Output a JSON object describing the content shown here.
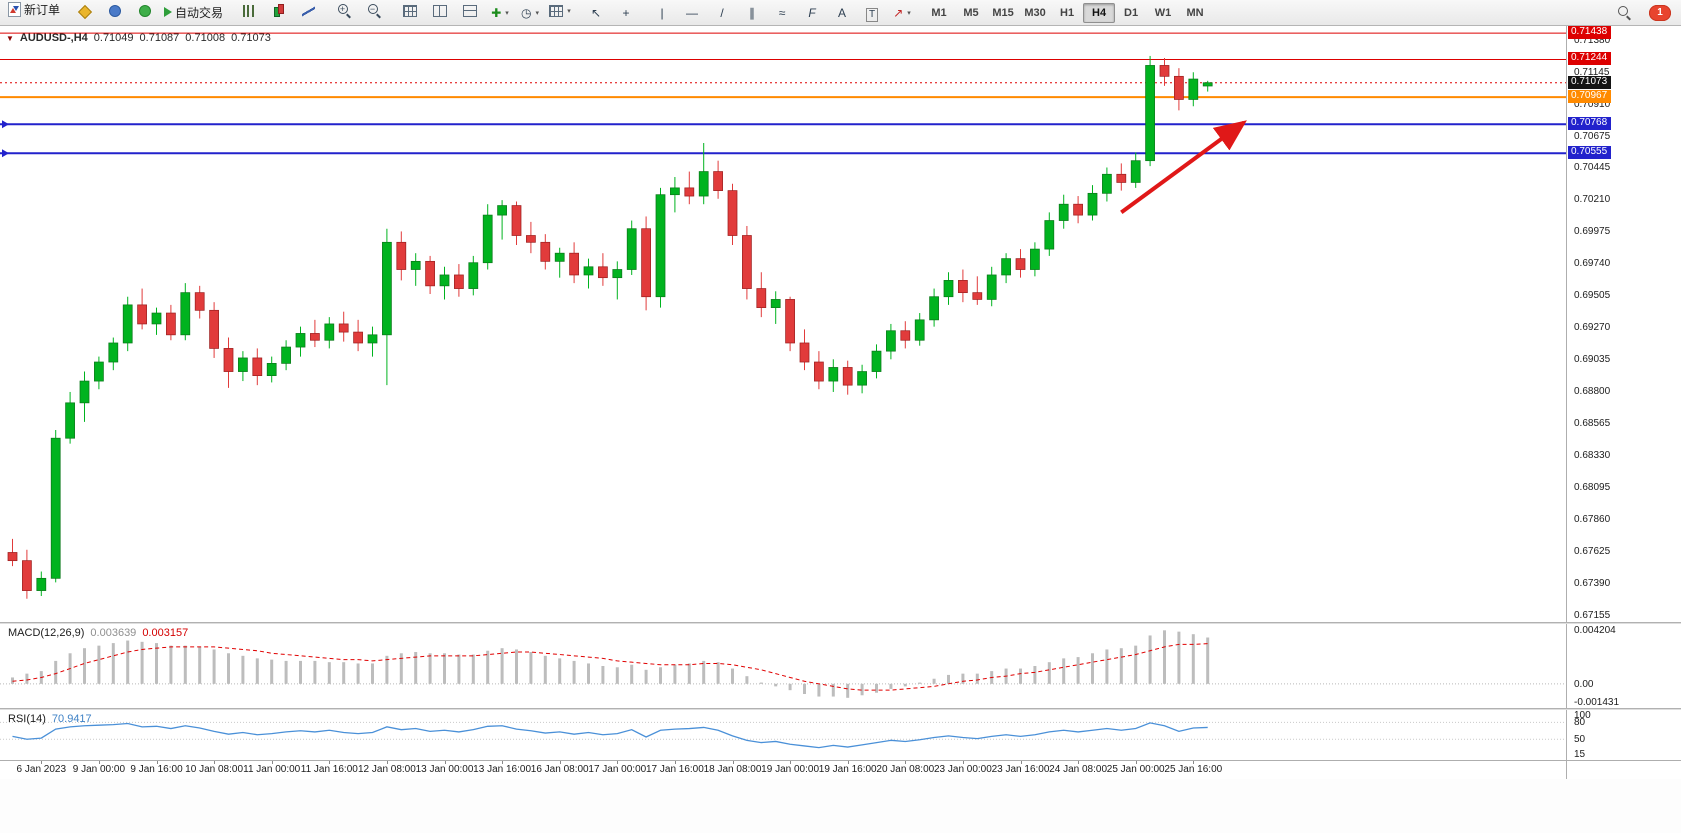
{
  "toolbar": {
    "new_order_label": "新订单",
    "auto_trading_label": "自动交易",
    "timeframes": [
      "M1",
      "M5",
      "M15",
      "M30",
      "H1",
      "H4",
      "D1",
      "W1",
      "MN"
    ],
    "active_timeframe": "H4",
    "notification_count": "1",
    "items": [
      {
        "name": "new-order-button",
        "kind": "doc",
        "label": "新订单"
      },
      {
        "kind": "sep"
      },
      {
        "name": "metaeditor-button",
        "kind": "gold"
      },
      {
        "name": "community-button",
        "kind": "person"
      },
      {
        "name": "market-button",
        "kind": "globe"
      },
      {
        "name": "auto-trading-button",
        "kind": "play",
        "label": "自动交易"
      },
      {
        "kind": "sep"
      },
      {
        "name": "bar-chart-button",
        "kind": "bars"
      },
      {
        "name": "candlestick-chart-button",
        "kind": "candle"
      },
      {
        "name": "line-chart-button",
        "kind": "line"
      },
      {
        "kind": "sep"
      },
      {
        "name": "zoom-in-button",
        "kind": "zin"
      },
      {
        "name": "zoom-out-button",
        "kind": "zout"
      },
      {
        "kind": "sep"
      },
      {
        "name": "auto-arrange-button",
        "kind": "grid"
      },
      {
        "name": "tile-windows-button",
        "kind": "tilev"
      },
      {
        "name": "tile-horizontal-button",
        "kind": "tileh"
      },
      {
        "name": "indicators-button",
        "kind": "g-plus",
        "caret": true
      },
      {
        "name": "periods-button",
        "kind": "g-clock",
        "caret": true
      },
      {
        "name": "templates-button",
        "kind": "grid",
        "caret": true
      },
      {
        "kind": "sep"
      },
      {
        "name": "cursor-button",
        "kind": "g-cursor"
      },
      {
        "name": "crosshair-button",
        "kind": "g-cross"
      },
      {
        "kind": "sep"
      },
      {
        "name": "vertical-line-button",
        "kind": "g-vline"
      },
      {
        "name": "horizontal-line-button",
        "kind": "g-hline"
      },
      {
        "name": "trendline-button",
        "kind": "g-tline"
      },
      {
        "name": "channel-button",
        "kind": "g-channel"
      },
      {
        "name": "pitchfork-button",
        "kind": "g-wave"
      },
      {
        "name": "fibonacci-button",
        "kind": "g-fibo"
      },
      {
        "name": "text-button",
        "kind": "g-textA"
      },
      {
        "name": "text-label-button",
        "kind": "g-textT"
      },
      {
        "name": "arrows-button",
        "kind": "g-arrow",
        "caret": true
      },
      {
        "kind": "sep"
      }
    ]
  },
  "icon_glyphs": {
    "g-plus": "✚",
    "g-clock": "◷",
    "g-cursor": "↖",
    "g-cross": "+",
    "g-vline": "|",
    "g-hline": "—",
    "g-tline": "/",
    "g-channel": "∥",
    "g-wave": "≈",
    "g-fibo": "F",
    "g-textA": "A",
    "g-textT": "T",
    "g-arrow": "↗"
  },
  "chart_header": {
    "symbol_period": "AUDUSD-,H4",
    "open": "0.71049",
    "high": "0.71087",
    "low": "0.71008",
    "close": "0.71073"
  },
  "panels": {
    "macd_title": "MACD(12,26,9)",
    "macd_value": "0.003639",
    "macd_signal_value": "0.003157",
    "rsi_title": "RSI(14)",
    "rsi_value": "70.9417"
  },
  "colors": {
    "bull": "#00b31f",
    "bull_border": "#0a7a1a",
    "bear": "#e13b3b",
    "bear_border": "#9e2121",
    "line_red": "#dd0000",
    "line_orange": "#ff8a00",
    "line_blue": "#2222cc",
    "current_badge": "#141414",
    "macd_hist": "#bdbdbd",
    "macd_signal": "#e00000",
    "rsi_line": "#4a90d8",
    "arrow": "#e01818",
    "axis_text": "#1c1c1c"
  },
  "chart_data": [
    {
      "type": "candlestick",
      "symbol": "AUDUSD-",
      "timeframe": "H4",
      "ylim": [
        0.67109,
        0.7149
      ],
      "y_ticks": [
        "0.71380",
        "0.71145",
        "0.70910",
        "0.70675",
        "0.70445",
        "0.70210",
        "0.69975",
        "0.69740",
        "0.69505",
        "0.69270",
        "0.69035",
        "0.68800",
        "0.68565",
        "0.68330",
        "0.68095",
        "0.67860",
        "0.67625",
        "0.67390",
        "0.67155"
      ],
      "time_labels": [
        "6 Jan 2023",
        "9 Jan 00:00",
        "9 Jan 16:00",
        "10 Jan 08:00",
        "11 Jan 00:00",
        "11 Jan 16:00",
        "12 Jan 08:00",
        "13 Jan 00:00",
        "13 Jan 16:00",
        "16 Jan 08:00",
        "17 Jan 00:00",
        "17 Jan 16:00",
        "18 Jan 08:00",
        "19 Jan 00:00",
        "19 Jan 16:00",
        "20 Jan 08:00",
        "23 Jan 00:00",
        "23 Jan 16:00",
        "24 Jan 08:00",
        "25 Jan 00:00",
        "25 Jan 16:00"
      ],
      "time_label_bars": [
        2,
        6,
        10,
        14,
        18,
        22,
        26,
        30,
        34,
        38,
        42,
        46,
        50,
        54,
        58,
        62,
        66,
        70,
        74,
        78,
        82
      ],
      "hlines": [
        {
          "price": 0.71438,
          "label": "0.71438",
          "color": "#dd0000",
          "width": 1,
          "style": "solid"
        },
        {
          "price": 0.71244,
          "label": "0.71244",
          "color": "#dd0000",
          "width": 1,
          "style": "solid"
        },
        {
          "price": 0.71073,
          "label": "0.71073",
          "color": "#dd0000",
          "width": 1,
          "style": "dot",
          "badge": "#141414"
        },
        {
          "price": 0.70967,
          "label": "0.70967",
          "color": "#ff8a00",
          "width": 2,
          "style": "solid"
        },
        {
          "price": 0.70768,
          "label": "0.70768",
          "color": "#2222cc",
          "width": 2,
          "style": "solid",
          "endmark": true
        },
        {
          "price": 0.70555,
          "label": "0.70555",
          "color": "#2222cc",
          "width": 2,
          "style": "solid",
          "endmark": true
        }
      ],
      "arrow": {
        "bar1": 77,
        "price1": 0.7012,
        "bar2": 85.5,
        "price2": 0.7078
      },
      "bars": [
        [
          0.6762,
          0.6772,
          0.6752,
          0.6756
        ],
        [
          0.6756,
          0.6764,
          0.6728,
          0.6734
        ],
        [
          0.6734,
          0.6748,
          0.673,
          0.6743
        ],
        [
          0.6743,
          0.6852,
          0.674,
          0.6846
        ],
        [
          0.6846,
          0.688,
          0.6842,
          0.6872
        ],
        [
          0.6872,
          0.6895,
          0.6858,
          0.6888
        ],
        [
          0.6888,
          0.6906,
          0.6882,
          0.6902
        ],
        [
          0.6902,
          0.692,
          0.6896,
          0.6916
        ],
        [
          0.6916,
          0.695,
          0.691,
          0.6944
        ],
        [
          0.6944,
          0.6956,
          0.6926,
          0.693
        ],
        [
          0.693,
          0.6942,
          0.6922,
          0.6938
        ],
        [
          0.6938,
          0.6944,
          0.6918,
          0.6922
        ],
        [
          0.6922,
          0.696,
          0.6918,
          0.6953
        ],
        [
          0.6953,
          0.6958,
          0.6934,
          0.694
        ],
        [
          0.694,
          0.6946,
          0.6905,
          0.6912
        ],
        [
          0.6912,
          0.692,
          0.6883,
          0.6895
        ],
        [
          0.6895,
          0.691,
          0.6888,
          0.6905
        ],
        [
          0.6905,
          0.6912,
          0.6885,
          0.6892
        ],
        [
          0.6892,
          0.6906,
          0.6887,
          0.6901
        ],
        [
          0.6901,
          0.6918,
          0.6896,
          0.6913
        ],
        [
          0.6913,
          0.6928,
          0.6906,
          0.6923
        ],
        [
          0.6923,
          0.6933,
          0.6913,
          0.6918
        ],
        [
          0.6918,
          0.6935,
          0.6912,
          0.693
        ],
        [
          0.693,
          0.6939,
          0.6917,
          0.6924
        ],
        [
          0.6924,
          0.6933,
          0.691,
          0.6916
        ],
        [
          0.6916,
          0.6928,
          0.6906,
          0.6922
        ],
        [
          0.6922,
          0.7,
          0.6885,
          0.699
        ],
        [
          0.699,
          0.6998,
          0.6962,
          0.697
        ],
        [
          0.697,
          0.6982,
          0.6958,
          0.6976
        ],
        [
          0.6976,
          0.698,
          0.6952,
          0.6958
        ],
        [
          0.6958,
          0.6972,
          0.6948,
          0.6966
        ],
        [
          0.6966,
          0.6974,
          0.695,
          0.6956
        ],
        [
          0.6956,
          0.698,
          0.6951,
          0.6975
        ],
        [
          0.6975,
          0.7018,
          0.697,
          0.701
        ],
        [
          0.701,
          0.7021,
          0.6992,
          0.7017
        ],
        [
          0.7017,
          0.702,
          0.6988,
          0.6995
        ],
        [
          0.6995,
          0.7005,
          0.6982,
          0.699
        ],
        [
          0.699,
          0.6996,
          0.697,
          0.6976
        ],
        [
          0.6976,
          0.6986,
          0.6964,
          0.6982
        ],
        [
          0.6982,
          0.699,
          0.696,
          0.6966
        ],
        [
          0.6966,
          0.6978,
          0.6956,
          0.6972
        ],
        [
          0.6972,
          0.6982,
          0.6958,
          0.6964
        ],
        [
          0.6964,
          0.6976,
          0.6948,
          0.697
        ],
        [
          0.697,
          0.7006,
          0.6966,
          0.7
        ],
        [
          0.7,
          0.7009,
          0.694,
          0.695
        ],
        [
          0.695,
          0.703,
          0.6942,
          0.7025
        ],
        [
          0.7025,
          0.7038,
          0.7012,
          0.703
        ],
        [
          0.703,
          0.7042,
          0.7018,
          0.7024
        ],
        [
          0.7024,
          0.7063,
          0.7018,
          0.7042
        ],
        [
          0.7042,
          0.705,
          0.7022,
          0.7028
        ],
        [
          0.7028,
          0.7033,
          0.6988,
          0.6995
        ],
        [
          0.6995,
          0.7002,
          0.6948,
          0.6956
        ],
        [
          0.6956,
          0.6968,
          0.6935,
          0.6942
        ],
        [
          0.6942,
          0.6954,
          0.693,
          0.6948
        ],
        [
          0.6948,
          0.695,
          0.691,
          0.6916
        ],
        [
          0.6916,
          0.6926,
          0.6896,
          0.6902
        ],
        [
          0.6902,
          0.691,
          0.6882,
          0.6888
        ],
        [
          0.6888,
          0.6904,
          0.688,
          0.6898
        ],
        [
          0.6898,
          0.6903,
          0.6878,
          0.6885
        ],
        [
          0.6885,
          0.69,
          0.6879,
          0.6895
        ],
        [
          0.6895,
          0.6915,
          0.689,
          0.691
        ],
        [
          0.691,
          0.693,
          0.6904,
          0.6925
        ],
        [
          0.6925,
          0.6932,
          0.6912,
          0.6918
        ],
        [
          0.6918,
          0.6938,
          0.6914,
          0.6933
        ],
        [
          0.6933,
          0.6956,
          0.6928,
          0.695
        ],
        [
          0.695,
          0.6968,
          0.6944,
          0.6962
        ],
        [
          0.6962,
          0.697,
          0.6946,
          0.6953
        ],
        [
          0.6953,
          0.6965,
          0.6944,
          0.6948
        ],
        [
          0.6948,
          0.6972,
          0.6943,
          0.6966
        ],
        [
          0.6966,
          0.6982,
          0.696,
          0.6978
        ],
        [
          0.6978,
          0.6985,
          0.6964,
          0.697
        ],
        [
          0.697,
          0.699,
          0.6965,
          0.6985
        ],
        [
          0.6985,
          0.7012,
          0.698,
          0.7006
        ],
        [
          0.7006,
          0.7025,
          0.7,
          0.7018
        ],
        [
          0.7018,
          0.7024,
          0.7004,
          0.701
        ],
        [
          0.701,
          0.7032,
          0.7006,
          0.7026
        ],
        [
          0.7026,
          0.7045,
          0.702,
          0.704
        ],
        [
          0.704,
          0.7048,
          0.7028,
          0.7034
        ],
        [
          0.7034,
          0.7056,
          0.703,
          0.705
        ],
        [
          0.705,
          0.7127,
          0.7046,
          0.712
        ],
        [
          0.712,
          0.71255,
          0.7105,
          0.7112
        ],
        [
          0.7112,
          0.7118,
          0.7087,
          0.7095
        ],
        [
          0.7095,
          0.7115,
          0.709,
          0.711
        ],
        [
          0.71049,
          0.71087,
          0.71008,
          0.71073
        ]
      ]
    },
    {
      "type": "bar",
      "title": "MACD(12,26,9)",
      "ylim": [
        -0.0019,
        0.0047
      ],
      "scale_labels": [
        "0.004204",
        "0.00",
        "-0.001431"
      ],
      "scale_values": [
        0.004204,
        0,
        -0.001431
      ],
      "values": [
        0.0005,
        0.0008,
        0.001,
        0.0018,
        0.0024,
        0.0028,
        0.003,
        0.0032,
        0.0034,
        0.0033,
        0.0032,
        0.003,
        0.003,
        0.0029,
        0.0027,
        0.0024,
        0.0022,
        0.002,
        0.0019,
        0.0018,
        0.0018,
        0.0018,
        0.0017,
        0.0017,
        0.0016,
        0.0016,
        0.0022,
        0.0024,
        0.0025,
        0.0024,
        0.0024,
        0.0023,
        0.0023,
        0.0026,
        0.0028,
        0.0027,
        0.0025,
        0.0022,
        0.002,
        0.0018,
        0.0016,
        0.0014,
        0.0013,
        0.0015,
        0.0011,
        0.0013,
        0.0015,
        0.0016,
        0.0018,
        0.0017,
        0.0012,
        0.0006,
        0.0001,
        -0.0002,
        -0.0005,
        -0.0008,
        -0.001,
        -0.001,
        -0.0011,
        -0.0009,
        -0.0007,
        -0.0004,
        -0.0002,
        0.0001,
        0.0004,
        0.0007,
        0.0008,
        0.0008,
        0.001,
        0.0012,
        0.0012,
        0.0014,
        0.0017,
        0.002,
        0.0021,
        0.0024,
        0.0027,
        0.0028,
        0.003,
        0.0038,
        0.004204,
        0.0041,
        0.0039,
        0.003639
      ],
      "signal": [
        0.0002,
        0.0003,
        0.0005,
        0.0008,
        0.0012,
        0.0016,
        0.0019,
        0.0022,
        0.0025,
        0.0027,
        0.0028,
        0.0029,
        0.0029,
        0.0029,
        0.0029,
        0.0028,
        0.0027,
        0.0026,
        0.0024,
        0.0023,
        0.0022,
        0.0021,
        0.002,
        0.0019,
        0.0019,
        0.0018,
        0.0019,
        0.002,
        0.0021,
        0.0022,
        0.0022,
        0.0022,
        0.0022,
        0.0023,
        0.0024,
        0.0025,
        0.0025,
        0.0024,
        0.0023,
        0.0022,
        0.0021,
        0.002,
        0.0018,
        0.0017,
        0.0016,
        0.0015,
        0.0015,
        0.0015,
        0.0016,
        0.0016,
        0.0015,
        0.0013,
        0.0011,
        0.0008,
        0.0005,
        0.0002,
        0.0,
        -0.0002,
        -0.0004,
        -0.0005,
        -0.0005,
        -0.0005,
        -0.0004,
        -0.0003,
        -0.0002,
        0.0,
        0.0002,
        0.0003,
        0.0005,
        0.0006,
        0.0008,
        0.0009,
        0.0011,
        0.0013,
        0.0015,
        0.0017,
        0.0019,
        0.0021,
        0.0023,
        0.0026,
        0.0029,
        0.0031,
        0.0031,
        0.003157
      ]
    },
    {
      "type": "line",
      "title": "RSI(14)",
      "ylim": [
        13,
        102
      ],
      "scale_labels": [
        "100",
        "80",
        "50",
        "15"
      ],
      "scale_values": [
        100,
        80,
        50,
        15
      ],
      "levels": [
        80,
        50
      ],
      "values": [
        55,
        50,
        52,
        68,
        72,
        74,
        75,
        76,
        78,
        72,
        73,
        69,
        74,
        70,
        64,
        59,
        62,
        58,
        60,
        63,
        65,
        63,
        66,
        62,
        60,
        62,
        72,
        67,
        69,
        64,
        66,
        63,
        67,
        73,
        74,
        68,
        65,
        61,
        63,
        59,
        62,
        58,
        60,
        67,
        54,
        66,
        68,
        69,
        71,
        66,
        56,
        48,
        44,
        46,
        41,
        38,
        35,
        39,
        36,
        40,
        44,
        48,
        46,
        49,
        53,
        56,
        53,
        51,
        55,
        58,
        55,
        58,
        63,
        66,
        63,
        66,
        69,
        66,
        69,
        79,
        74,
        64,
        70,
        70.94
      ]
    }
  ]
}
